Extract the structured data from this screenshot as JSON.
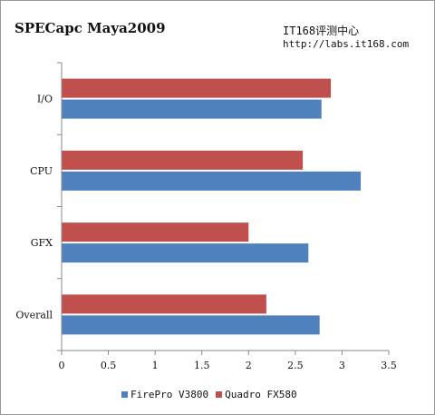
{
  "header": {
    "title": "SPECapc Maya2009",
    "site_name": "IT168评测中心",
    "site_url": "http://labs.it168.com"
  },
  "chart_data": {
    "type": "bar",
    "orientation": "horizontal",
    "title": "SPECapc Maya2009",
    "categories": [
      "I/O",
      "CPU",
      "GFX",
      "Overall"
    ],
    "series": [
      {
        "name": "FirePro V3800",
        "color": "#4f81bd",
        "values": [
          2.78,
          3.2,
          2.64,
          2.76
        ]
      },
      {
        "name": "Quadro FX580",
        "color": "#c0504d",
        "values": [
          2.88,
          2.58,
          2.0,
          2.19
        ]
      }
    ],
    "xlim": [
      0,
      3.5
    ],
    "xticks": [
      "0",
      "0.5",
      "1",
      "1.5",
      "2",
      "2.5",
      "3",
      "3.5"
    ],
    "grid": false,
    "legend_position": "bottom"
  }
}
